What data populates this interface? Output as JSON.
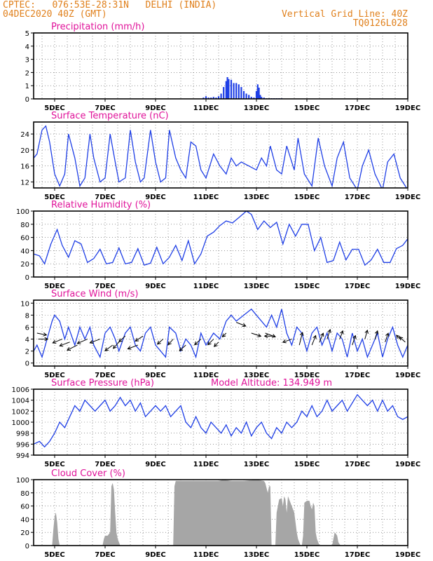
{
  "header": {
    "line1_left": "CPTEC:   076:53E-28:31N   DELHI (INDIA)",
    "line2_left": "04DEC2020 40Z (GMT)",
    "line1_right": "Vertical Grid Line: 40Z",
    "line2_right": "TQ0126L028"
  },
  "colors": {
    "header": "#e0801c",
    "title": "#e0139a",
    "series": "#1f3fe6",
    "cloud": "#a6a6a6",
    "arrow": "#000000",
    "grid": "#555555"
  },
  "x_tick_labels": [
    "5DEC",
    "7DEC",
    "9DEC",
    "11DEC",
    "13DEC",
    "15DEC",
    "17DEC",
    "19DEC"
  ],
  "chart_data": [
    {
      "id": "precip",
      "type": "bar",
      "title": "Precipitation (mm/h)",
      "xlim": [
        4.1667,
        19.0
      ],
      "ylim": [
        0,
        5
      ],
      "yticks": [
        0,
        1,
        2,
        3,
        4,
        5
      ],
      "x": [
        10.9,
        11.0,
        11.1,
        11.2,
        11.3,
        11.4,
        11.5,
        11.6,
        11.7,
        11.8,
        11.85,
        11.9,
        12.0,
        12.1,
        12.2,
        12.3,
        12.4,
        12.5,
        12.6,
        12.7,
        12.8,
        12.9,
        13.0,
        13.05,
        13.1,
        13.15,
        13.2,
        13.3,
        13.4,
        13.5,
        13.6,
        13.7,
        13.8,
        13.9,
        14.0
      ],
      "values": [
        0.1,
        0.2,
        0.1,
        0.1,
        0.15,
        0.1,
        0.2,
        0.4,
        0.9,
        1.35,
        1.65,
        1.5,
        1.45,
        1.2,
        1.2,
        1.1,
        0.9,
        0.6,
        0.4,
        0.3,
        0.15,
        0.1,
        0.6,
        1.1,
        0.85,
        0.3,
        0.15,
        0.1,
        0.05,
        0.05,
        0.05,
        0.05,
        0.05,
        0.05,
        0.05
      ]
    },
    {
      "id": "temp",
      "type": "line",
      "title": "Surface Temperature (nC)",
      "xlim": [
        4.1667,
        19.0
      ],
      "ylim": [
        10.5,
        27
      ],
      "yticks": [
        12,
        16,
        20,
        24
      ],
      "x": [
        4.17,
        4.3,
        4.5,
        4.65,
        4.8,
        5.0,
        5.2,
        5.4,
        5.55,
        5.8,
        6.0,
        6.2,
        6.4,
        6.55,
        6.8,
        7.0,
        7.2,
        7.4,
        7.55,
        7.8,
        8.0,
        8.2,
        8.4,
        8.55,
        8.8,
        9.0,
        9.2,
        9.4,
        9.55,
        9.8,
        10.0,
        10.2,
        10.4,
        10.6,
        10.8,
        11.0,
        11.3,
        11.55,
        11.8,
        12.0,
        12.2,
        12.4,
        12.7,
        13.0,
        13.2,
        13.4,
        13.55,
        13.8,
        14.0,
        14.2,
        14.5,
        14.65,
        14.9,
        15.2,
        15.45,
        15.7,
        16.0,
        16.2,
        16.45,
        16.7,
        17.0,
        17.2,
        17.45,
        17.7,
        18.0,
        18.2,
        18.45,
        18.7,
        19.0
      ],
      "values": [
        18,
        19,
        25,
        26,
        22,
        14,
        11,
        14,
        24,
        18,
        11,
        13,
        24,
        18,
        12,
        13,
        24,
        17,
        12,
        13,
        25,
        17,
        12,
        13,
        25,
        17,
        12,
        13,
        25,
        18,
        15,
        13,
        22,
        21,
        15,
        13,
        19,
        16,
        14,
        18,
        16,
        17,
        16,
        15,
        18,
        16,
        21,
        15,
        14,
        21,
        15,
        23,
        14,
        11,
        23,
        16,
        11,
        18,
        22,
        13,
        10,
        16,
        20,
        14,
        10,
        17,
        19,
        13,
        10
      ]
    },
    {
      "id": "rh",
      "type": "line",
      "title": "Relative Humidity (%)",
      "xlim": [
        4.1667,
        19.0
      ],
      "ylim": [
        0,
        100
      ],
      "yticks": [
        0,
        20,
        40,
        60,
        80,
        100
      ],
      "x": [
        4.17,
        4.4,
        4.6,
        4.85,
        5.1,
        5.3,
        5.55,
        5.8,
        6.05,
        6.3,
        6.55,
        6.8,
        7.05,
        7.3,
        7.55,
        7.8,
        8.05,
        8.3,
        8.55,
        8.8,
        9.05,
        9.3,
        9.55,
        9.8,
        10.05,
        10.3,
        10.55,
        10.8,
        11.05,
        11.3,
        11.55,
        11.8,
        12.05,
        12.3,
        12.6,
        12.8,
        13.05,
        13.3,
        13.55,
        13.8,
        14.05,
        14.3,
        14.55,
        14.8,
        15.05,
        15.3,
        15.55,
        15.8,
        16.05,
        16.3,
        16.55,
        16.8,
        17.05,
        17.3,
        17.55,
        17.8,
        18.05,
        18.3,
        18.55,
        18.8,
        19.0
      ],
      "values": [
        35,
        32,
        20,
        50,
        72,
        48,
        30,
        55,
        50,
        22,
        28,
        42,
        20,
        22,
        44,
        20,
        22,
        43,
        18,
        21,
        45,
        20,
        30,
        48,
        25,
        55,
        20,
        35,
        62,
        68,
        78,
        85,
        82,
        90,
        100,
        95,
        72,
        85,
        75,
        83,
        50,
        80,
        62,
        80,
        80,
        40,
        60,
        22,
        25,
        53,
        26,
        42,
        42,
        18,
        26,
        42,
        22,
        22,
        43,
        48,
        58
      ]
    },
    {
      "id": "wind",
      "type": "line",
      "title": "Surface Wind (m/s)",
      "xlim": [
        4.1667,
        19.0
      ],
      "ylim": [
        -0.5,
        10.5
      ],
      "yticks": [
        0,
        2,
        4,
        6,
        8,
        10
      ],
      "x": [
        4.17,
        4.3,
        4.5,
        4.7,
        4.9,
        5.0,
        5.2,
        5.4,
        5.55,
        5.8,
        6.0,
        6.2,
        6.4,
        6.55,
        6.8,
        7.0,
        7.2,
        7.4,
        7.55,
        7.8,
        8.0,
        8.2,
        8.4,
        8.6,
        8.8,
        9.0,
        9.2,
        9.4,
        9.55,
        9.8,
        10.0,
        10.2,
        10.4,
        10.6,
        10.8,
        11.0,
        11.3,
        11.55,
        11.8,
        12.0,
        12.2,
        12.5,
        12.8,
        13.0,
        13.2,
        13.4,
        13.6,
        13.8,
        14.0,
        14.2,
        14.4,
        14.6,
        14.8,
        15.0,
        15.2,
        15.4,
        15.6,
        15.8,
        16.0,
        16.2,
        16.4,
        16.6,
        16.8,
        17.0,
        17.2,
        17.4,
        17.6,
        17.8,
        18.0,
        18.2,
        18.4,
        18.6,
        18.8,
        19.0
      ],
      "values": [
        2,
        3,
        1,
        4,
        7,
        8,
        7,
        4,
        6,
        3,
        6,
        4,
        6,
        3,
        1,
        5,
        6,
        4,
        2,
        5,
        6,
        3,
        2,
        5,
        6,
        3,
        2,
        1,
        6,
        5,
        2,
        4,
        3,
        1,
        5,
        3,
        5,
        4,
        7,
        8,
        7,
        8,
        9,
        8,
        7,
        6,
        8,
        6,
        9,
        5,
        3,
        6,
        5,
        2,
        5,
        6,
        3,
        5,
        2,
        5,
        4,
        1,
        5,
        2,
        4,
        1,
        3,
        5,
        1,
        4,
        6,
        3,
        1,
        3
      ]
    },
    {
      "id": "press",
      "type": "line",
      "title": "Surface Pressure (hPa)",
      "annotation": "Model Altitude: 134.949 m",
      "xlim": [
        4.1667,
        19.0
      ],
      "ylim": [
        994,
        1006
      ],
      "yticks": [
        994,
        996,
        998,
        1000,
        1002,
        1004,
        1006
      ],
      "x": [
        4.17,
        4.4,
        4.6,
        4.8,
        5.0,
        5.2,
        5.4,
        5.6,
        5.8,
        6.0,
        6.2,
        6.4,
        6.6,
        6.8,
        7.0,
        7.2,
        7.4,
        7.6,
        7.8,
        8.0,
        8.2,
        8.4,
        8.6,
        8.8,
        9.0,
        9.2,
        9.4,
        9.6,
        9.8,
        10.0,
        10.2,
        10.4,
        10.6,
        10.8,
        11.0,
        11.2,
        11.4,
        11.6,
        11.8,
        12.0,
        12.2,
        12.4,
        12.6,
        12.8,
        13.0,
        13.2,
        13.4,
        13.6,
        13.8,
        14.0,
        14.2,
        14.4,
        14.6,
        14.8,
        15.0,
        15.2,
        15.4,
        15.6,
        15.8,
        16.0,
        16.2,
        16.4,
        16.6,
        16.8,
        17.0,
        17.2,
        17.4,
        17.6,
        17.8,
        18.0,
        18.2,
        18.4,
        18.6,
        18.8,
        19.0
      ],
      "values": [
        996,
        996.5,
        995.5,
        996.5,
        998,
        1000,
        999,
        1001,
        1003,
        1002,
        1004,
        1003,
        1002,
        1003,
        1004,
        1002,
        1003,
        1004.5,
        1003,
        1004,
        1002,
        1003.5,
        1001,
        1002,
        1003,
        1002,
        1003,
        1001,
        1002,
        1003,
        1000,
        999,
        1001,
        999,
        998,
        1000,
        999,
        998,
        999.5,
        997.5,
        999,
        998,
        1000,
        997.5,
        999,
        1000,
        998,
        997,
        999,
        998,
        1000,
        999,
        1000,
        1002,
        1001,
        1003,
        1001,
        1002,
        1004,
        1002,
        1003,
        1004,
        1002,
        1003.5,
        1005,
        1004,
        1003,
        1004,
        1002,
        1004,
        1002,
        1003,
        1001,
        1000.5,
        1001
      ]
    },
    {
      "id": "cloud",
      "type": "area",
      "title": "Cloud Cover (%)",
      "xlim": [
        4.1667,
        19.0
      ],
      "ylim": [
        0,
        100
      ],
      "yticks": [
        0,
        20,
        40,
        60,
        80,
        100
      ],
      "x": [
        4.17,
        4.9,
        4.95,
        5.0,
        5.05,
        5.1,
        5.15,
        5.2,
        6.9,
        6.95,
        7.0,
        7.1,
        7.2,
        7.25,
        7.3,
        7.35,
        7.4,
        7.45,
        7.5,
        7.55,
        7.6,
        9.7,
        9.75,
        9.8,
        10.0,
        11.0,
        11.5,
        11.7,
        12.0,
        12.5,
        13.0,
        13.3,
        13.35,
        13.45,
        13.5,
        13.55,
        13.6,
        13.65,
        13.75,
        13.8,
        13.9,
        14.0,
        14.05,
        14.1,
        14.15,
        14.2,
        14.25,
        14.3,
        14.5,
        14.6,
        14.65,
        14.7,
        14.75,
        14.8,
        14.85,
        14.9,
        15.0,
        15.1,
        15.15,
        15.2,
        15.25,
        15.3,
        15.35,
        15.4,
        15.45,
        15.5,
        16.0,
        16.05,
        16.1,
        16.15,
        16.2,
        16.25,
        16.3,
        16.35,
        19.0
      ],
      "values": [
        0,
        0,
        25,
        45,
        50,
        35,
        10,
        0,
        0,
        10,
        15,
        15,
        20,
        90,
        95,
        85,
        50,
        20,
        10,
        5,
        0,
        0,
        90,
        98,
        98,
        98,
        98,
        100,
        98,
        98,
        100,
        98,
        95,
        80,
        90,
        90,
        0,
        0,
        0,
        50,
        70,
        72,
        60,
        75,
        70,
        50,
        75,
        70,
        50,
        20,
        10,
        5,
        0,
        0,
        15,
        65,
        68,
        68,
        60,
        55,
        65,
        60,
        20,
        10,
        5,
        0,
        0,
        10,
        20,
        18,
        15,
        5,
        2,
        0,
        0
      ]
    },
    {
      "id": "wind-arrows",
      "type": "scatter",
      "x": [
        4.3,
        4.35,
        5.3,
        5.6,
        5.9,
        6.3,
        6.8,
        7.3,
        7.55,
        7.8,
        8.3,
        8.5,
        9.3,
        9.7,
        10.2,
        10.8,
        11.3,
        11.5,
        11.8,
        12.2,
        12.8,
        13.35,
        13.7,
        14.4,
        14.7,
        15.2,
        15.5,
        15.8,
        16.3,
        16.8,
        17.3,
        17.7,
        18.1,
        18.7,
        18.9
      ],
      "y": [
        5,
        4,
        4,
        3.5,
        3,
        4,
        4,
        3,
        3.5,
        4.5,
        3,
        4.5,
        4,
        4,
        3,
        4,
        4,
        3.5,
        5,
        6.8,
        5,
        5,
        4.5,
        4,
        3,
        3,
        3.5,
        4,
        4,
        3,
        4,
        4,
        3.5,
        4,
        3.5
      ],
      "u": [
        1.5,
        1.5,
        -1.5,
        -1.6,
        -1.6,
        -1.6,
        -1.6,
        -1.2,
        -0.9,
        -1.0,
        -1.6,
        -1.2,
        -0.9,
        -0.8,
        -1.0,
        -1.0,
        -0.9,
        -0.7,
        -0.6,
        1.5,
        1.5,
        1.6,
        -1.5,
        -1.4,
        0.5,
        0.6,
        0.6,
        0.5,
        0.5,
        0.5,
        0.4,
        0.4,
        0.5,
        -0.6,
        -0.9
      ],
      "v": [
        -0.3,
        0.0,
        -0.6,
        -0.6,
        -0.8,
        -0.7,
        -0.6,
        -0.9,
        -1.0,
        -0.9,
        -0.6,
        -0.8,
        -0.8,
        -0.9,
        -0.9,
        -0.9,
        -0.9,
        -0.7,
        -0.6,
        -0.6,
        -0.5,
        -0.6,
        0.0,
        -0.5,
        2.0,
        1.5,
        1.4,
        1.5,
        1.3,
        1.5,
        1.4,
        1.3,
        1.4,
        0.6,
        0.8
      ]
    }
  ]
}
